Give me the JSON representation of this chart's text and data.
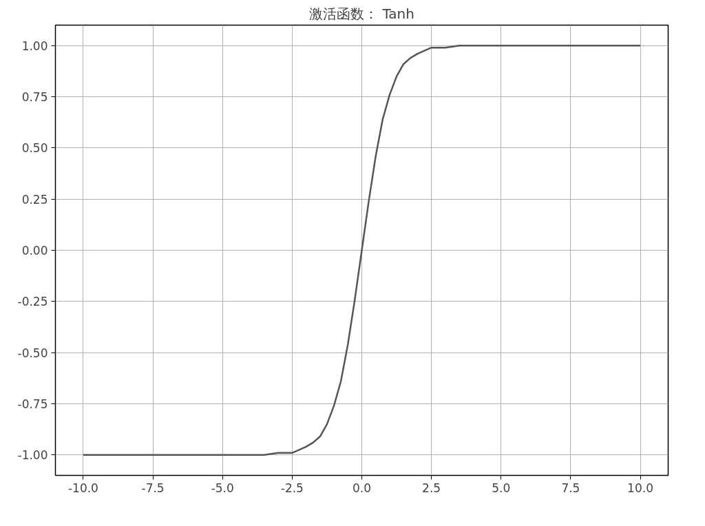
{
  "chart_data": {
    "type": "line",
    "title": "激活函数： Tanh",
    "x": [
      -10,
      -8,
      -6,
      -5,
      -4,
      -3.5,
      -3,
      -2.5,
      -2,
      -1.75,
      -1.5,
      -1.25,
      -1,
      -0.75,
      -0.5,
      -0.25,
      0,
      0.25,
      0.5,
      0.75,
      1,
      1.25,
      1.5,
      1.75,
      2,
      2.5,
      3,
      3.5,
      4,
      5,
      6,
      8,
      10
    ],
    "series": [
      {
        "color": "#555555",
        "values": [
          -1.0,
          -1.0,
          -1.0,
          -1.0,
          -1.0,
          -1.0,
          -0.99,
          -0.99,
          -0.96,
          -0.94,
          -0.91,
          -0.85,
          -0.76,
          -0.64,
          -0.46,
          -0.24,
          0.0,
          0.24,
          0.46,
          0.64,
          0.76,
          0.85,
          0.91,
          0.94,
          0.96,
          0.99,
          0.99,
          1.0,
          1.0,
          1.0,
          1.0,
          1.0,
          1.0
        ]
      }
    ],
    "xlim": [
      -11,
      11
    ],
    "ylim": [
      -1.1,
      1.1
    ],
    "xticks": [
      {
        "value": -10,
        "label": "-10.0"
      },
      {
        "value": -7.5,
        "label": "-7.5"
      },
      {
        "value": -5,
        "label": "-5.0"
      },
      {
        "value": -2.5,
        "label": "-2.5"
      },
      {
        "value": 0,
        "label": "0.0"
      },
      {
        "value": 2.5,
        "label": "2.5"
      },
      {
        "value": 5,
        "label": "5.0"
      },
      {
        "value": 7.5,
        "label": "7.5"
      },
      {
        "value": 10,
        "label": "10.0"
      }
    ],
    "yticks": [
      {
        "value": -1,
        "label": "-1.00"
      },
      {
        "value": -0.75,
        "label": "-0.75"
      },
      {
        "value": -0.5,
        "label": "-0.50"
      },
      {
        "value": -0.25,
        "label": "-0.25"
      },
      {
        "value": 0,
        "label": "0.00"
      },
      {
        "value": 0.25,
        "label": "0.25"
      },
      {
        "value": 0.5,
        "label": "0.50"
      },
      {
        "value": 0.75,
        "label": "0.75"
      },
      {
        "value": 1,
        "label": "1.00"
      }
    ],
    "grid": true
  }
}
